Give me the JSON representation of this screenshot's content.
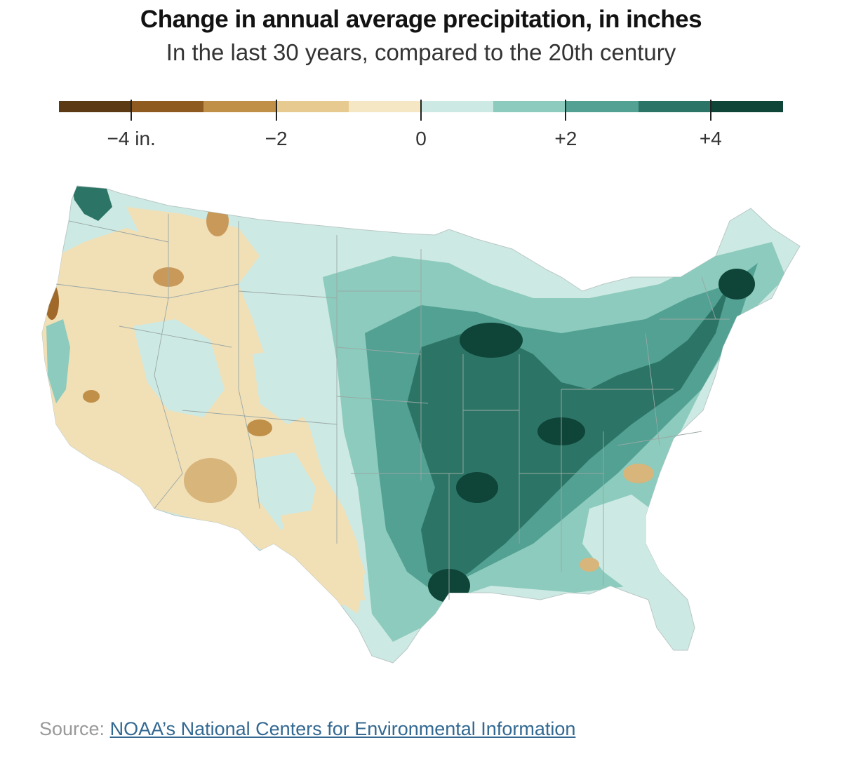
{
  "title": "Change in annual average precipitation, in inches",
  "subtitle": "In the last 30 years, compared to the 20th century",
  "legend": {
    "min": -5,
    "max": 5,
    "bins": [
      {
        "from": -5,
        "to": -4,
        "color": "#5b3a14"
      },
      {
        "from": -4,
        "to": -3,
        "color": "#8f5a20"
      },
      {
        "from": -3,
        "to": -2,
        "color": "#c08f48"
      },
      {
        "from": -2,
        "to": -1,
        "color": "#e6ca8f"
      },
      {
        "from": -1,
        "to": 0,
        "color": "#f6e7c4"
      },
      {
        "from": 0,
        "to": 1,
        "color": "#cde9e3"
      },
      {
        "from": 1,
        "to": 2,
        "color": "#8ccbbd"
      },
      {
        "from": 2,
        "to": 3,
        "color": "#52a193"
      },
      {
        "from": 3,
        "to": 4,
        "color": "#2c7566"
      },
      {
        "from": 4,
        "to": 5,
        "color": "#0f4438"
      }
    ],
    "ticks": [
      {
        "value": -4,
        "label": "−4 in."
      },
      {
        "value": -2,
        "label": "−2"
      },
      {
        "value": 0,
        "label": "0"
      },
      {
        "value": 2,
        "label": "+2"
      },
      {
        "value": 4,
        "label": "+4"
      }
    ]
  },
  "map": {
    "region": "Contiguous United States",
    "fill_land": "#cde9e3",
    "border_color": "#9aa9a6"
  },
  "source": {
    "prefix": "Source:",
    "link_text": "NOAA’s National Centers for Environmental Information"
  }
}
